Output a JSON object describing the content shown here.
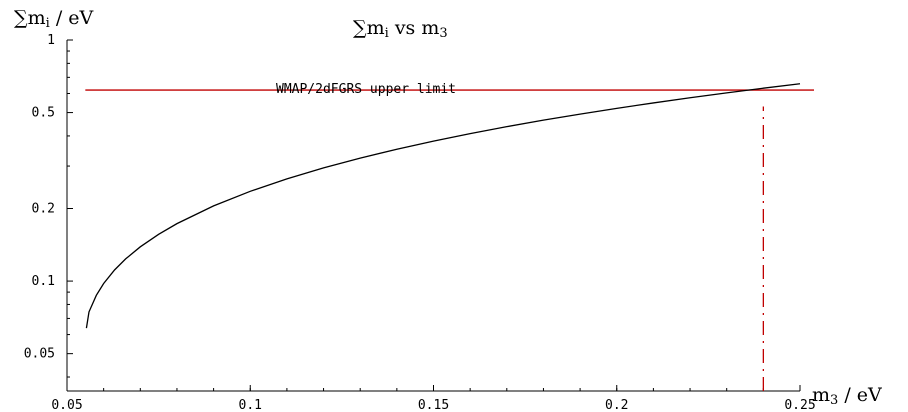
{
  "chart_data": {
    "type": "line",
    "title": {
      "sum": "∑",
      "m": "m",
      "i": "i",
      "rest": " vs ",
      "m3": "m",
      "sub3": "3"
    },
    "ylabel": {
      "sum": "∑",
      "m": "m",
      "i": "i",
      "unit": " / eV"
    },
    "xlabel": {
      "m": "m",
      "sub": "3",
      "unit": " / eV"
    },
    "x_scale": "linear",
    "y_scale": "log",
    "xlim": [
      0.05,
      0.25
    ],
    "ylim": [
      0.035,
      1.0
    ],
    "x_ticks": [
      {
        "value": 0.05,
        "label": "0.05"
      },
      {
        "value": 0.1,
        "label": "0.1"
      },
      {
        "value": 0.15,
        "label": "0.15"
      },
      {
        "value": 0.2,
        "label": "0.2"
      },
      {
        "value": 0.25,
        "label": "0.25"
      }
    ],
    "y_ticks": [
      {
        "value": 0.05,
        "label": "0.05"
      },
      {
        "value": 0.1,
        "label": "0.1"
      },
      {
        "value": 0.2,
        "label": "0.2"
      },
      {
        "value": 0.5,
        "label": "0.5"
      },
      {
        "value": 1.0,
        "label": "1"
      }
    ],
    "series": [
      {
        "color": "#000000",
        "x": [
          0.0553,
          0.056,
          0.058,
          0.06,
          0.063,
          0.066,
          0.07,
          0.075,
          0.08,
          0.09,
          0.1,
          0.11,
          0.12,
          0.13,
          0.14,
          0.15,
          0.16,
          0.17,
          0.18,
          0.19,
          0.2,
          0.21,
          0.22,
          0.23,
          0.24,
          0.25
        ],
        "y": [
          0.0638,
          0.0745,
          0.0873,
          0.0977,
          0.1113,
          0.1236,
          0.1387,
          0.1563,
          0.1731,
          0.2051,
          0.2357,
          0.2655,
          0.2948,
          0.3237,
          0.3523,
          0.3807,
          0.4089,
          0.437,
          0.465,
          0.4928,
          0.5206,
          0.5483,
          0.576,
          0.6036,
          0.6311,
          0.6587
        ]
      }
    ],
    "reference_lines": [
      {
        "orientation": "horizontal",
        "value": 0.62,
        "x_start": 0.055,
        "x_end": 0.25,
        "color": "#c00000",
        "style": "solid",
        "label": "WMAP/2dFGRS upper limit"
      },
      {
        "orientation": "vertical",
        "value": 0.24,
        "y_start": 0.035,
        "y_end": 0.53,
        "color": "#c00000",
        "style": "dashdot"
      }
    ],
    "grid": false,
    "colors": {
      "curve": "#000000",
      "limit": "#c00000",
      "axis": "#000000"
    }
  }
}
